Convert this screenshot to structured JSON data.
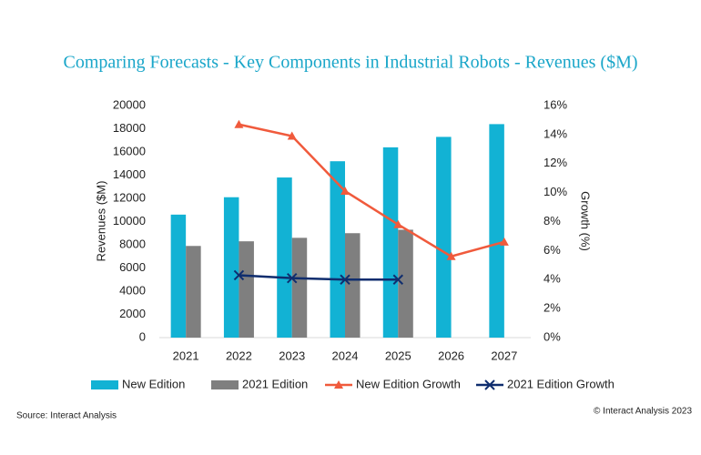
{
  "chart_data": {
    "type": "bar",
    "title": "Comparing Forecasts - Key Components in Industrial Robots - Revenues ($M)",
    "categories": [
      "2021",
      "2022",
      "2023",
      "2024",
      "2025",
      "2026",
      "2027"
    ],
    "series": [
      {
        "name": "New Edition",
        "color": "#12b2d4",
        "values": [
          10600,
          12100,
          13800,
          15200,
          16400,
          17300,
          18400
        ]
      },
      {
        "name": "2021 Edition",
        "color": "#7f7f7f",
        "values": [
          7900,
          8300,
          8600,
          9000,
          9300,
          null,
          null
        ]
      },
      {
        "name": "New Edition Growth",
        "type": "line",
        "marker": "triangle",
        "axis": "y2",
        "color": "#f05a3c",
        "values": [
          null,
          14.7,
          13.9,
          10.1,
          7.8,
          5.6,
          6.6
        ]
      },
      {
        "name": "2021 Edition Growth",
        "type": "line",
        "marker": "x",
        "axis": "y2",
        "color": "#0f2d6e",
        "values": [
          null,
          4.3,
          4.1,
          4.0,
          4.0,
          null,
          null
        ]
      }
    ],
    "ylabel": "Revenues ($M)",
    "y2label": "Growth (%)",
    "ylim": [
      0,
      20000
    ],
    "yticks": [
      0,
      2000,
      4000,
      6000,
      8000,
      10000,
      12000,
      14000,
      16000,
      18000,
      20000
    ],
    "y2lim": [
      0,
      16
    ],
    "y2ticks": [
      {
        "value": 0,
        "label": "0%"
      },
      {
        "value": 2,
        "label": "2%"
      },
      {
        "value": 4,
        "label": "4%"
      },
      {
        "value": 6,
        "label": "6%"
      },
      {
        "value": 8,
        "label": "8%"
      },
      {
        "value": 10,
        "label": "10%"
      },
      {
        "value": 12,
        "label": "12%"
      },
      {
        "value": 14,
        "label": "14%"
      },
      {
        "value": 16,
        "label": "16%"
      }
    ],
    "grid": false,
    "legend": "bottom",
    "source": "Source: Interact Analysis",
    "copyright": "© Interact Analysis 2023"
  }
}
